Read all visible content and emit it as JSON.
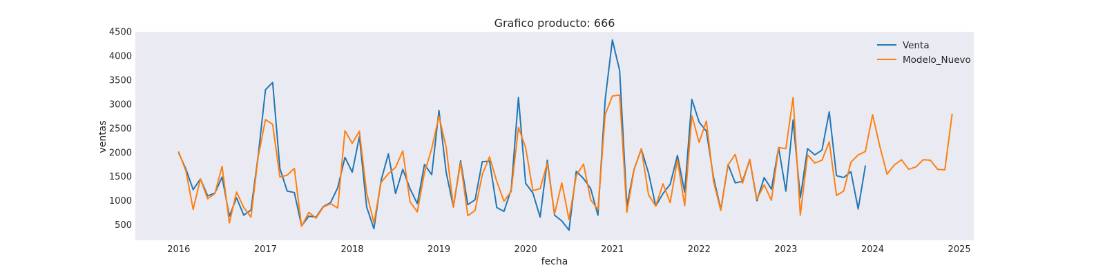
{
  "chart_data": {
    "type": "line",
    "title": "Grafico producto: 666",
    "xlabel": "fecha",
    "ylabel": "ventas",
    "x_ticks": [
      "2016",
      "2017",
      "2018",
      "2019",
      "2020",
      "2021",
      "2022",
      "2023",
      "2024",
      "2025"
    ],
    "y_ticks": [
      "500",
      "1000",
      "1500",
      "2000",
      "2500",
      "3000",
      "3500",
      "4000",
      "4500"
    ],
    "x_range": [
      "2015-07",
      "2025-03"
    ],
    "ylim": [
      180,
      4500
    ],
    "grid": false,
    "legend_position": "top-right",
    "background": "#eaeaf2",
    "series": [
      {
        "name": "Venta",
        "color": "#1f77b4",
        "start": "2016-01",
        "values": [
          1990,
          1650,
          1230,
          1450,
          1100,
          1160,
          1490,
          680,
          1060,
          700,
          810,
          1940,
          3300,
          3450,
          1670,
          1200,
          1170,
          480,
          680,
          660,
          880,
          960,
          1270,
          1900,
          1590,
          2330,
          870,
          420,
          1420,
          1970,
          1150,
          1650,
          1250,
          940,
          1750,
          1540,
          2870,
          1590,
          870,
          1830,
          920,
          1020,
          1810,
          1820,
          860,
          780,
          1230,
          3140,
          1360,
          1160,
          660,
          1840,
          700,
          580,
          390,
          1610,
          1460,
          1250,
          700,
          3100,
          4330,
          3700,
          900,
          1650,
          2070,
          1570,
          890,
          1150,
          1340,
          1940,
          1180,
          3100,
          2630,
          2440,
          1480,
          820,
          1750,
          1370,
          1400,
          1850,
          1000,
          1480,
          1240,
          2100,
          1200,
          2670,
          1060,
          2080,
          1950,
          2050,
          2840,
          1520,
          1480,
          1600,
          830,
          1720
        ]
      },
      {
        "name": "Modelo_Nuevo",
        "color": "#ff7f0e",
        "start": "2016-01",
        "values": [
          2010,
          1610,
          820,
          1450,
          1040,
          1150,
          1710,
          540,
          1180,
          860,
          660,
          1920,
          2680,
          2580,
          1490,
          1530,
          1670,
          470,
          760,
          640,
          870,
          940,
          850,
          2450,
          2190,
          2440,
          1160,
          540,
          1380,
          1560,
          1690,
          2030,
          980,
          770,
          1580,
          2080,
          2750,
          2110,
          870,
          1790,
          690,
          800,
          1540,
          1910,
          1400,
          990,
          1190,
          2520,
          2100,
          1210,
          1250,
          1780,
          730,
          1370,
          610,
          1520,
          1760,
          1020,
          820,
          2780,
          3170,
          3190,
          760,
          1640,
          2080,
          1120,
          890,
          1350,
          960,
          1850,
          900,
          2760,
          2210,
          2650,
          1400,
          800,
          1740,
          1960,
          1360,
          1860,
          1030,
          1330,
          1010,
          2100,
          2080,
          3140,
          700,
          1950,
          1780,
          1840,
          2220,
          1110,
          1200,
          1800,
          1950,
          2020,
          2780,
          2130,
          1550,
          1740,
          1850,
          1650,
          1700,
          1850,
          1840,
          1650,
          1640,
          2790
        ]
      }
    ]
  }
}
